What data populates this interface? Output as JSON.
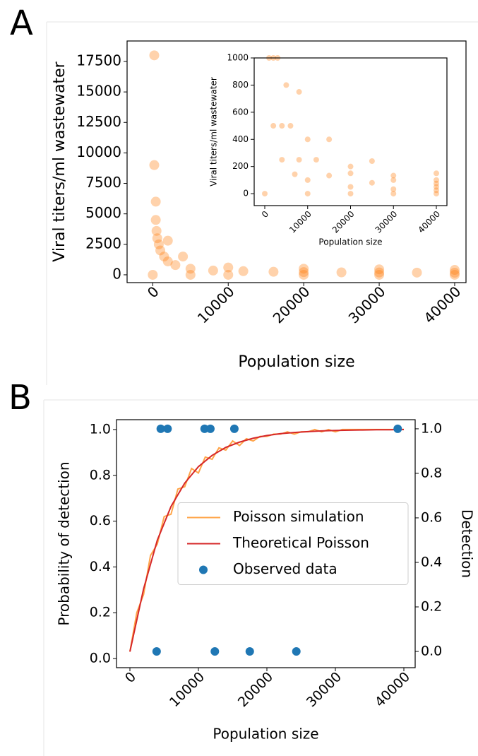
{
  "panel_labels": [
    "A",
    "B"
  ],
  "chart_data": [
    {
      "type": "scatter",
      "x_label": "Population size",
      "y_label": "Viral titers/ml wastewater",
      "xlim": [
        -3400,
        41500
      ],
      "ylim": [
        -640,
        19180
      ],
      "xticks": [
        0,
        10000,
        20000,
        30000,
        40000
      ],
      "yticks": [
        0,
        2500,
        5000,
        7500,
        10000,
        12500,
        15000,
        17500
      ],
      "series": [
        {
          "color": "#ff7f0e",
          "x": [
            200,
            200,
            400,
            400,
            500,
            600,
            800,
            1000,
            1500,
            2000,
            3000,
            5000,
            8000,
            12000,
            16000,
            20000,
            25000,
            30000,
            35000,
            40000,
            0,
            5000,
            10000,
            20000,
            30000,
            40000,
            10000,
            20000,
            30000,
            40000,
            2000,
            4000
          ],
          "values": [
            18000,
            9000,
            6000,
            4500,
            3600,
            3000,
            2500,
            2000,
            1500,
            1100,
            800,
            500,
            350,
            300,
            250,
            220,
            200,
            190,
            180,
            170,
            0,
            0,
            0,
            0,
            0,
            0,
            600,
            500,
            450,
            400,
            2800,
            1500
          ]
        }
      ]
    },
    {
      "type": "scatter",
      "x_label": "Population size",
      "y_label": "Viral titers/ml wastewater",
      "xlim": [
        -2470,
        42470
      ],
      "ylim": [
        -88,
        1000
      ],
      "xticks": [
        0,
        10000,
        20000,
        30000,
        40000
      ],
      "yticks": [
        0,
        200,
        400,
        600,
        800,
        1000
      ],
      "series": [
        {
          "color": "#ff7f0e",
          "x": [
            1000,
            2000,
            4000,
            7000,
            10000,
            20000,
            30000,
            40000,
            2000,
            4000,
            8000,
            15000,
            25000,
            40000,
            3000,
            6000,
            12000,
            20000,
            30000,
            40000,
            5000,
            10000,
            20000,
            30000,
            40000,
            8000,
            15000,
            25000,
            40000,
            0,
            10000,
            20000,
            30000,
            40000
          ],
          "values": [
            1000,
            500,
            250,
            143,
            100,
            50,
            33,
            25,
            1000,
            500,
            250,
            133,
            80,
            50,
            1000,
            500,
            250,
            150,
            100,
            75,
            800,
            400,
            200,
            133,
            100,
            750,
            400,
            240,
            150,
            0,
            0,
            0,
            0,
            0
          ]
        }
      ]
    },
    {
      "type": "line",
      "x_label": "Population size",
      "y_label": "Probability of detection",
      "y2_label": "Detection",
      "xlim": [
        -1960,
        41650
      ],
      "ylim": [
        -0.04,
        1.043
      ],
      "y2lim": [
        -0.073,
        1.041
      ],
      "xticks": [
        0,
        10000,
        20000,
        30000,
        40000
      ],
      "yticks": [
        {
          "value": 0,
          "label": "0.0"
        },
        0.2,
        0.4,
        0.6,
        0.8,
        {
          "value": 1,
          "label": "1.0"
        }
      ],
      "y2ticks": [
        {
          "value": 0,
          "label": "0.0"
        },
        0.2,
        0.4,
        0.6,
        0.8,
        {
          "value": 1,
          "label": "1.0"
        }
      ],
      "legend": "center right",
      "series": [
        {
          "name": "Poisson simulation",
          "type": "line",
          "color": "#ffa54a",
          "x": [
            0,
            1000,
            2000,
            3000,
            4000,
            5000,
            6000,
            7000,
            8000,
            9000,
            10000,
            11000,
            12000,
            13000,
            14000,
            15000,
            16000,
            17000,
            18000,
            19000,
            20000,
            21000,
            22000,
            23000,
            24000,
            25000,
            26000,
            27000,
            28000,
            29000,
            30000,
            31000,
            32000,
            33000,
            34000,
            35000,
            36000,
            37000,
            38000,
            39000,
            40000
          ],
          "values": [
            0.03,
            0.2,
            0.28,
            0.45,
            0.5,
            0.62,
            0.63,
            0.74,
            0.75,
            0.83,
            0.81,
            0.88,
            0.87,
            0.92,
            0.91,
            0.95,
            0.93,
            0.96,
            0.95,
            0.97,
            0.97,
            0.98,
            0.98,
            0.99,
            0.98,
            0.99,
            0.99,
            1.0,
            0.99,
            1.0,
            0.99,
            1.0,
            1.0,
            1.0,
            1.0,
            1.0,
            1.0,
            1.0,
            1.0,
            1.0,
            1.0
          ]
        },
        {
          "name": "Theoretical Poisson",
          "type": "line",
          "color": "#d62728",
          "x": [
            0,
            2000,
            4000,
            6000,
            8000,
            10000,
            12000,
            14000,
            16000,
            18000,
            20000,
            22000,
            24000,
            26000,
            28000,
            30000,
            32000,
            34000,
            36000,
            38000,
            40000
          ],
          "values": [
            0.03,
            0.305,
            0.517,
            0.664,
            0.766,
            0.838,
            0.887,
            0.922,
            0.945,
            0.962,
            0.974,
            0.982,
            0.987,
            0.991,
            0.994,
            0.996,
            0.997,
            0.998,
            0.999,
            0.999,
            1.0
          ]
        },
        {
          "name": "Observed data",
          "type": "scatter",
          "axis": "y2",
          "color": "#1f77b4",
          "x": [
            3900,
            4500,
            5500,
            10900,
            11750,
            12400,
            15250,
            17500,
            24300,
            39100
          ],
          "values": [
            0,
            1,
            1,
            1,
            1,
            0,
            1,
            0,
            0,
            1
          ]
        }
      ]
    }
  ]
}
